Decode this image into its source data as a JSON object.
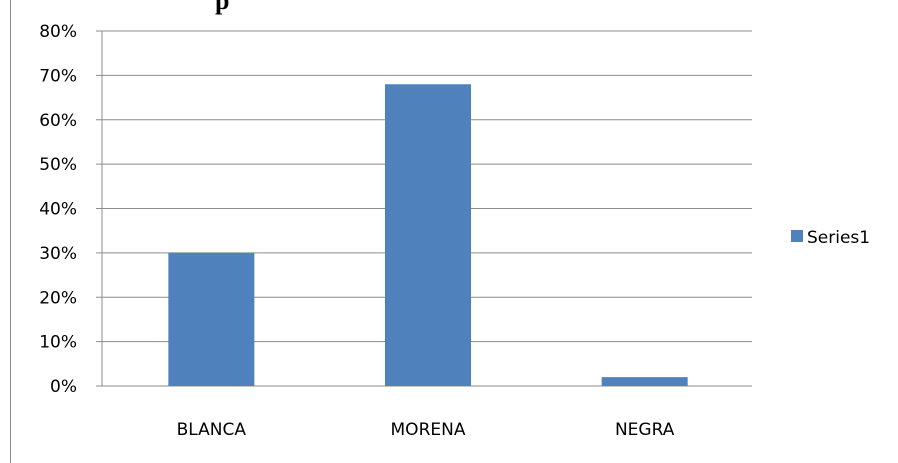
{
  "chart_data": {
    "type": "bar",
    "title": "p",
    "categories": [
      "BLANCA",
      "MORENA",
      "NEGRA"
    ],
    "series": [
      {
        "name": "Series1",
        "values": [
          30,
          68,
          2
        ]
      }
    ],
    "ylim": [
      0,
      80
    ],
    "yticks": [
      0,
      10,
      20,
      30,
      40,
      50,
      60,
      70,
      80
    ],
    "ytick_labels": [
      "0%",
      "10%",
      "20%",
      "30%",
      "40%",
      "50%",
      "60%",
      "70%",
      "80%"
    ],
    "grid": true,
    "legend_position": "right",
    "colors": {
      "bar": "#4f81bd",
      "grid": "#8c8c8c"
    }
  }
}
